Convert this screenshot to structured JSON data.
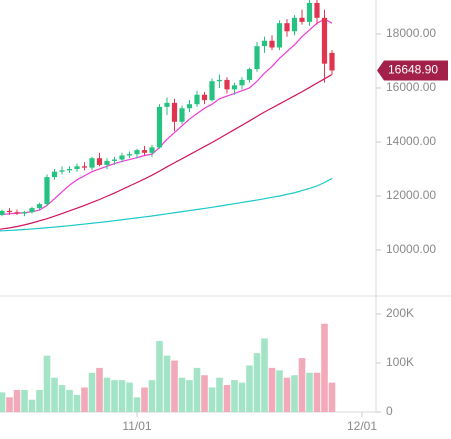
{
  "chart_data": {
    "type": "candlestick",
    "x": [
      0,
      1,
      2,
      3,
      4,
      5,
      6,
      7,
      8,
      9,
      10,
      11,
      12,
      13,
      14,
      15,
      16,
      17,
      18,
      19,
      20,
      21,
      22,
      23,
      24,
      25,
      26,
      27,
      28,
      29,
      30,
      31,
      32,
      33,
      34,
      35,
      36,
      37,
      38,
      39,
      40,
      41,
      42,
      43,
      44,
      45
    ],
    "open": [
      11350,
      11300,
      11450,
      11400,
      11350,
      11400,
      11550,
      11700,
      12700,
      12900,
      12950,
      13000,
      13100,
      13050,
      13400,
      13150,
      13300,
      13350,
      13500,
      13550,
      13700,
      13600,
      13800,
      15300,
      15450,
      14750,
      15250,
      15400,
      15750,
      15550,
      16250,
      16300,
      15950,
      16100,
      16300,
      16700,
      17550,
      17750,
      17500,
      18400,
      18100,
      18600,
      18450,
      19150,
      18600,
      17300
    ],
    "high": [
      11450,
      11500,
      11550,
      11500,
      11450,
      11600,
      11750,
      12800,
      13000,
      13100,
      13100,
      13200,
      13250,
      13450,
      13600,
      13400,
      13450,
      13600,
      13650,
      13750,
      13850,
      13900,
      15400,
      15650,
      15600,
      15350,
      15550,
      15900,
      15850,
      16350,
      16500,
      16400,
      16200,
      16400,
      16750,
      17700,
      17900,
      17950,
      18500,
      18550,
      18700,
      18900,
      19300,
      19300,
      18900,
      17400
    ],
    "low": [
      11250,
      11250,
      11300,
      11300,
      11250,
      11350,
      11500,
      11650,
      12600,
      12800,
      12850,
      12900,
      12950,
      12950,
      13100,
      13000,
      13150,
      13250,
      13400,
      13400,
      13500,
      13450,
      13750,
      15000,
      14400,
      14650,
      15100,
      15300,
      15400,
      15500,
      16000,
      15800,
      15750,
      15950,
      16200,
      16600,
      17300,
      17400,
      17400,
      17900,
      17950,
      18350,
      18300,
      18350,
      16200,
      16500
    ],
    "close": [
      11300,
      11450,
      11400,
      11350,
      11400,
      11550,
      11700,
      12700,
      12900,
      12950,
      13000,
      13100,
      13050,
      13400,
      13150,
      13300,
      13350,
      13500,
      13550,
      13700,
      13600,
      13800,
      15300,
      15450,
      14750,
      15250,
      15400,
      15750,
      15550,
      16250,
      16300,
      15950,
      16100,
      16300,
      16700,
      17550,
      17750,
      17500,
      18400,
      18100,
      18600,
      18450,
      19150,
      18600,
      16900,
      16648.9
    ],
    "up_color": "#26c281",
    "down_color": "#e0344f",
    "moving_averages": [
      {
        "color": "#f03ad8",
        "values": [
          11300,
          11320,
          11340,
          11360,
          11380,
          11420,
          11480,
          11650,
          11900,
          12150,
          12400,
          12600,
          12750,
          12900,
          13000,
          13100,
          13200,
          13280,
          13350,
          13420,
          13500,
          13550,
          13800,
          14100,
          14350,
          14600,
          14850,
          15050,
          15250,
          15400,
          15600,
          15700,
          15800,
          15900,
          16000,
          16250,
          16550,
          16800,
          17100,
          17350,
          17600,
          17900,
          18150,
          18400,
          18550,
          18400
        ]
      },
      {
        "color": "#d0125e",
        "values": [
          10750,
          10780,
          10820,
          10870,
          10930,
          11000,
          11080,
          11160,
          11250,
          11350,
          11450,
          11550,
          11650,
          11760,
          11870,
          11990,
          12110,
          12240,
          12370,
          12500,
          12630,
          12770,
          12920,
          13080,
          13230,
          13380,
          13530,
          13680,
          13830,
          13980,
          14140,
          14300,
          14460,
          14620,
          14780,
          14950,
          15110,
          15260,
          15410,
          15560,
          15710,
          15860,
          16020,
          16180,
          16340,
          16500
        ]
      },
      {
        "color": "#1cc8c8",
        "values": [
          10700,
          10710,
          10725,
          10740,
          10760,
          10780,
          10800,
          10825,
          10850,
          10875,
          10900,
          10930,
          10960,
          10990,
          11020,
          11050,
          11085,
          11120,
          11155,
          11190,
          11225,
          11260,
          11300,
          11340,
          11380,
          11420,
          11460,
          11500,
          11540,
          11580,
          11625,
          11670,
          11715,
          11760,
          11805,
          11850,
          11900,
          11950,
          12000,
          12060,
          12120,
          12200,
          12280,
          12370,
          12500,
          12650
        ]
      }
    ],
    "xlim": [
      0.733,
      50.867
    ],
    "xticks": [
      {
        "value": 19,
        "label": "11/01"
      },
      {
        "value": 49,
        "label": "12/01"
      }
    ],
    "ylim": [
      8296,
      19259
    ],
    "yticks": [
      {
        "value": 10000,
        "label": "10000.00"
      },
      {
        "value": 12000,
        "label": "12000.00"
      },
      {
        "value": 14000,
        "label": "14000.00"
      },
      {
        "value": 16000,
        "label": "16000.00"
      },
      {
        "value": 18000,
        "label": "18000.00"
      }
    ],
    "last_price": {
      "value": 16648.9,
      "label": "16648.90",
      "color": "#a3204a"
    },
    "volume": {
      "values": [
        45000,
        40000,
        30000,
        45000,
        45000,
        25000,
        45000,
        115000,
        70000,
        55000,
        45000,
        35000,
        50000,
        80000,
        90000,
        70000,
        65000,
        65000,
        60000,
        30000,
        50000,
        65000,
        145000,
        115000,
        105000,
        70000,
        65000,
        90000,
        75000,
        50000,
        70000,
        55000,
        65000,
        60000,
        95000,
        120000,
        150000,
        90000,
        85000,
        70000,
        75000,
        110000,
        80000,
        80000,
        180000,
        60000
      ],
      "up_color": "#a3e4c7",
      "down_color": "#f2a9b8",
      "ylim": [
        0,
        236700
      ],
      "yticks": [
        0,
        {
          "value": 100000,
          "label": "100K"
        },
        {
          "value": 200000,
          "label": "200K"
        }
      ]
    }
  }
}
